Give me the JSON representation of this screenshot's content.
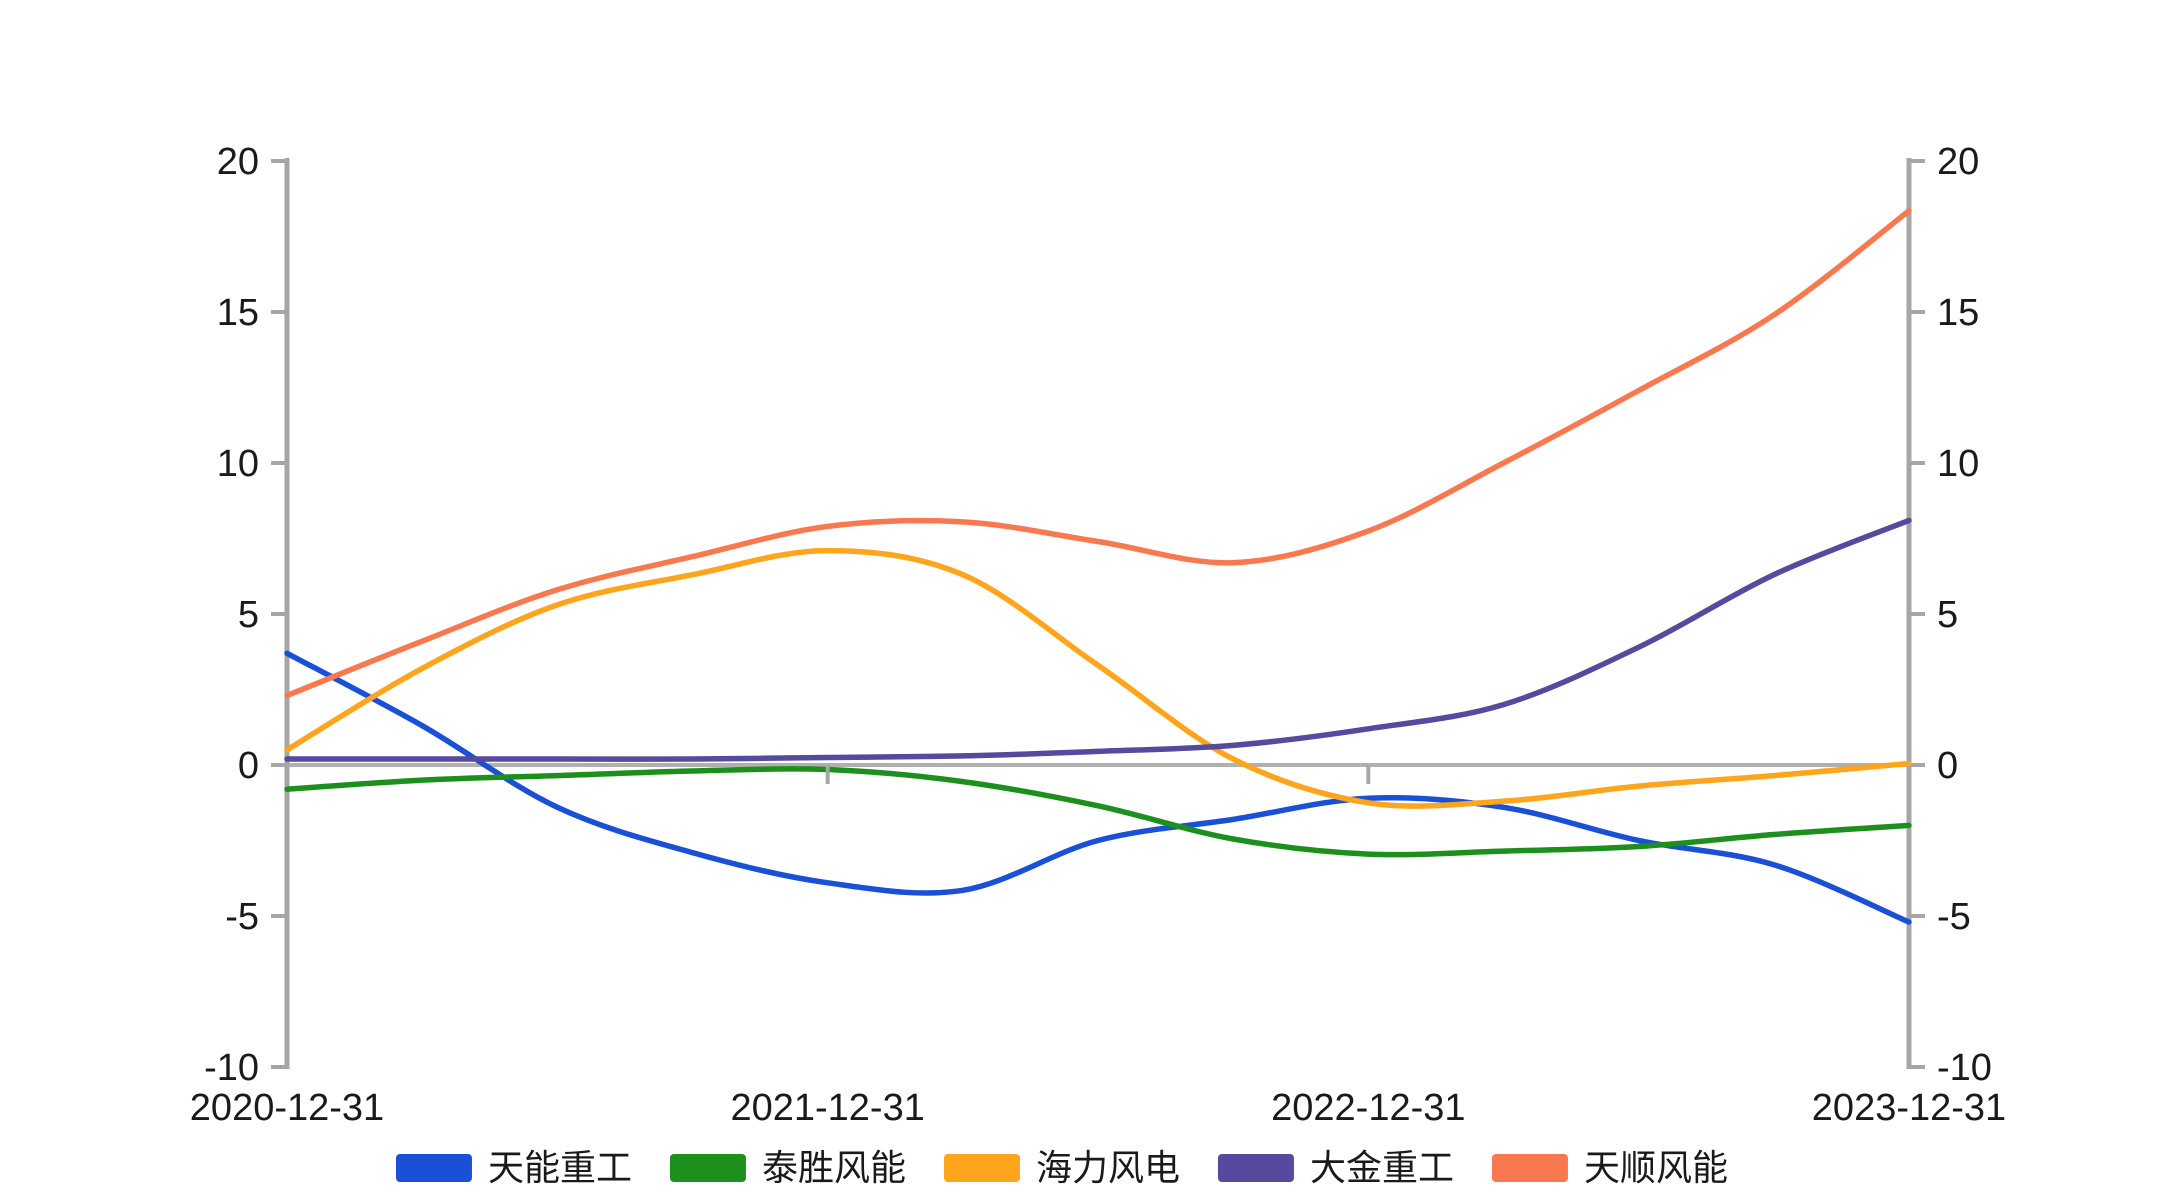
{
  "figure": {
    "background_color": "#ffffff"
  },
  "chart_data": {
    "type": "line",
    "title": "",
    "xlabel": "",
    "ylabel": "",
    "x_tick_labels": [
      "2020-12-31",
      "2021-12-31",
      "2022-12-31",
      "2023-12-31"
    ],
    "y_ticks": [
      20,
      15,
      10,
      5,
      0,
      -5,
      -10
    ],
    "ylim": [
      -10,
      20
    ],
    "dual_y_axis": true,
    "grid": false,
    "zero_line": true,
    "legend_position": "bottom",
    "x_unit_years_from_start": [
      0,
      0.25,
      0.5,
      0.75,
      1,
      1.25,
      1.5,
      1.75,
      2,
      2.25,
      2.5,
      2.75,
      3
    ],
    "series": [
      {
        "name": "天能重工",
        "color": "#1a50d6",
        "values": [
          3.7,
          1.3,
          -1.4,
          -2.9,
          -3.9,
          -4.15,
          -2.5,
          -1.8,
          -1.1,
          -1.4,
          -2.5,
          -3.3,
          -5.2
        ]
      },
      {
        "name": "泰胜风能",
        "color": "#1d8f1d",
        "values": [
          -0.8,
          -0.5,
          -0.35,
          -0.2,
          -0.15,
          -0.55,
          -1.35,
          -2.45,
          -2.95,
          -2.85,
          -2.7,
          -2.3,
          -2.0
        ]
      },
      {
        "name": "海力风电",
        "color": "#ffa41d",
        "values": [
          0.5,
          3.2,
          5.3,
          6.3,
          7.1,
          6.3,
          3.3,
          0.2,
          -1.25,
          -1.2,
          -0.7,
          -0.35,
          0.05
        ]
      },
      {
        "name": "大金重工",
        "color": "#554a9e",
        "values": [
          0.2,
          0.2,
          0.2,
          0.2,
          0.25,
          0.3,
          0.45,
          0.65,
          1.2,
          2.0,
          3.9,
          6.3,
          8.1
        ]
      },
      {
        "name": "天顺风能",
        "color": "#f87950",
        "values": [
          2.3,
          4.1,
          5.8,
          6.9,
          7.9,
          8.05,
          7.4,
          6.7,
          7.75,
          10.0,
          12.4,
          14.9,
          18.35
        ]
      }
    ],
    "style": {
      "axis_color": "#a6a6a6",
      "zero_line_color": "#b0b0b0",
      "tick_label_color": "#1a1a1a",
      "line_width": 5.5
    }
  }
}
